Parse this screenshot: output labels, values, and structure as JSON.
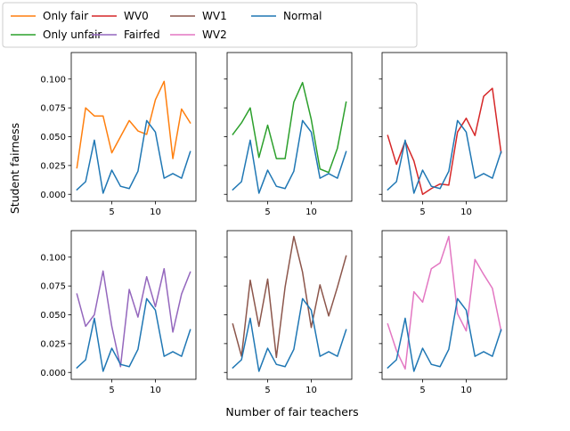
{
  "figure": {
    "ylabel": "Student fairness",
    "xlabel": "Number of fair teachers"
  },
  "legend": {
    "placement": "top-left",
    "entries": [
      {
        "name": "Only fair",
        "color": "#ff7f0e"
      },
      {
        "name": "Only unfair",
        "color": "#2ca02c"
      },
      {
        "name": "WV0",
        "color": "#d62728"
      },
      {
        "name": "Fairfed",
        "color": "#9467bd"
      },
      {
        "name": "WV1",
        "color": "#8c564b"
      },
      {
        "name": "WV2",
        "color": "#e377c2"
      },
      {
        "name": "Normal",
        "color": "#1f77b4"
      }
    ]
  },
  "chart_data": {
    "type": "line",
    "layout": "2x3 small multiples, shared x and y axes",
    "x": [
      1,
      2,
      3,
      4,
      5,
      6,
      7,
      8,
      9,
      10,
      11,
      12,
      13,
      14
    ],
    "xlim": [
      0.35,
      14.65
    ],
    "ylim": [
      -0.006,
      0.123
    ],
    "xticks": [
      "5",
      "10"
    ],
    "xtick_values": [
      5,
      10
    ],
    "yticks": [
      "0.000",
      "0.025",
      "0.050",
      "0.075",
      "0.100"
    ],
    "ytick_values": [
      0.0,
      0.025,
      0.05,
      0.075,
      0.1
    ],
    "grid": false,
    "normal_series": {
      "name": "Normal",
      "color": "#1f77b4",
      "values": [
        0.004,
        0.011,
        0.047,
        0.001,
        0.021,
        0.007,
        0.005,
        0.02,
        0.064,
        0.054,
        0.014,
        0.018,
        0.014,
        0.037
      ]
    },
    "panels": [
      {
        "series": [
          {
            "name": "Only fair",
            "color": "#ff7f0e",
            "values": [
              0.023,
              0.075,
              0.068,
              0.068,
              0.036,
              0.05,
              0.064,
              0.055,
              0.052,
              0.082,
              0.098,
              0.031,
              0.074,
              0.062
            ]
          }
        ]
      },
      {
        "series": [
          {
            "name": "Only unfair",
            "color": "#2ca02c",
            "values": [
              0.052,
              0.062,
              0.075,
              0.032,
              0.06,
              0.031,
              0.031,
              0.08,
              0.097,
              0.065,
              0.022,
              0.019,
              0.04,
              0.08
            ]
          }
        ]
      },
      {
        "series": [
          {
            "name": "WV0",
            "color": "#d62728",
            "values": [
              0.051,
              0.026,
              0.046,
              0.029,
              0.0,
              0.005,
              0.009,
              0.008,
              0.054,
              0.066,
              0.051,
              0.085,
              0.092,
              0.036
            ]
          }
        ]
      },
      {
        "series": [
          {
            "name": "Fairfed",
            "color": "#9467bd",
            "values": [
              0.068,
              0.04,
              0.05,
              0.088,
              0.04,
              0.005,
              0.072,
              0.048,
              0.083,
              0.057,
              0.09,
              0.035,
              0.068,
              0.087
            ]
          }
        ]
      },
      {
        "series": [
          {
            "name": "WV1",
            "color": "#8c564b",
            "values": [
              0.042,
              0.014,
              0.08,
              0.04,
              0.081,
              0.013,
              0.074,
              0.118,
              0.087,
              0.039,
              0.076,
              0.049,
              0.074,
              0.101
            ]
          }
        ]
      },
      {
        "series": [
          {
            "name": "WV2",
            "color": "#e377c2",
            "values": [
              0.042,
              0.019,
              0.003,
              0.07,
              0.061,
              0.09,
              0.095,
              0.118,
              0.051,
              0.036,
              0.098,
              0.085,
              0.073,
              0.036
            ]
          }
        ]
      }
    ]
  }
}
